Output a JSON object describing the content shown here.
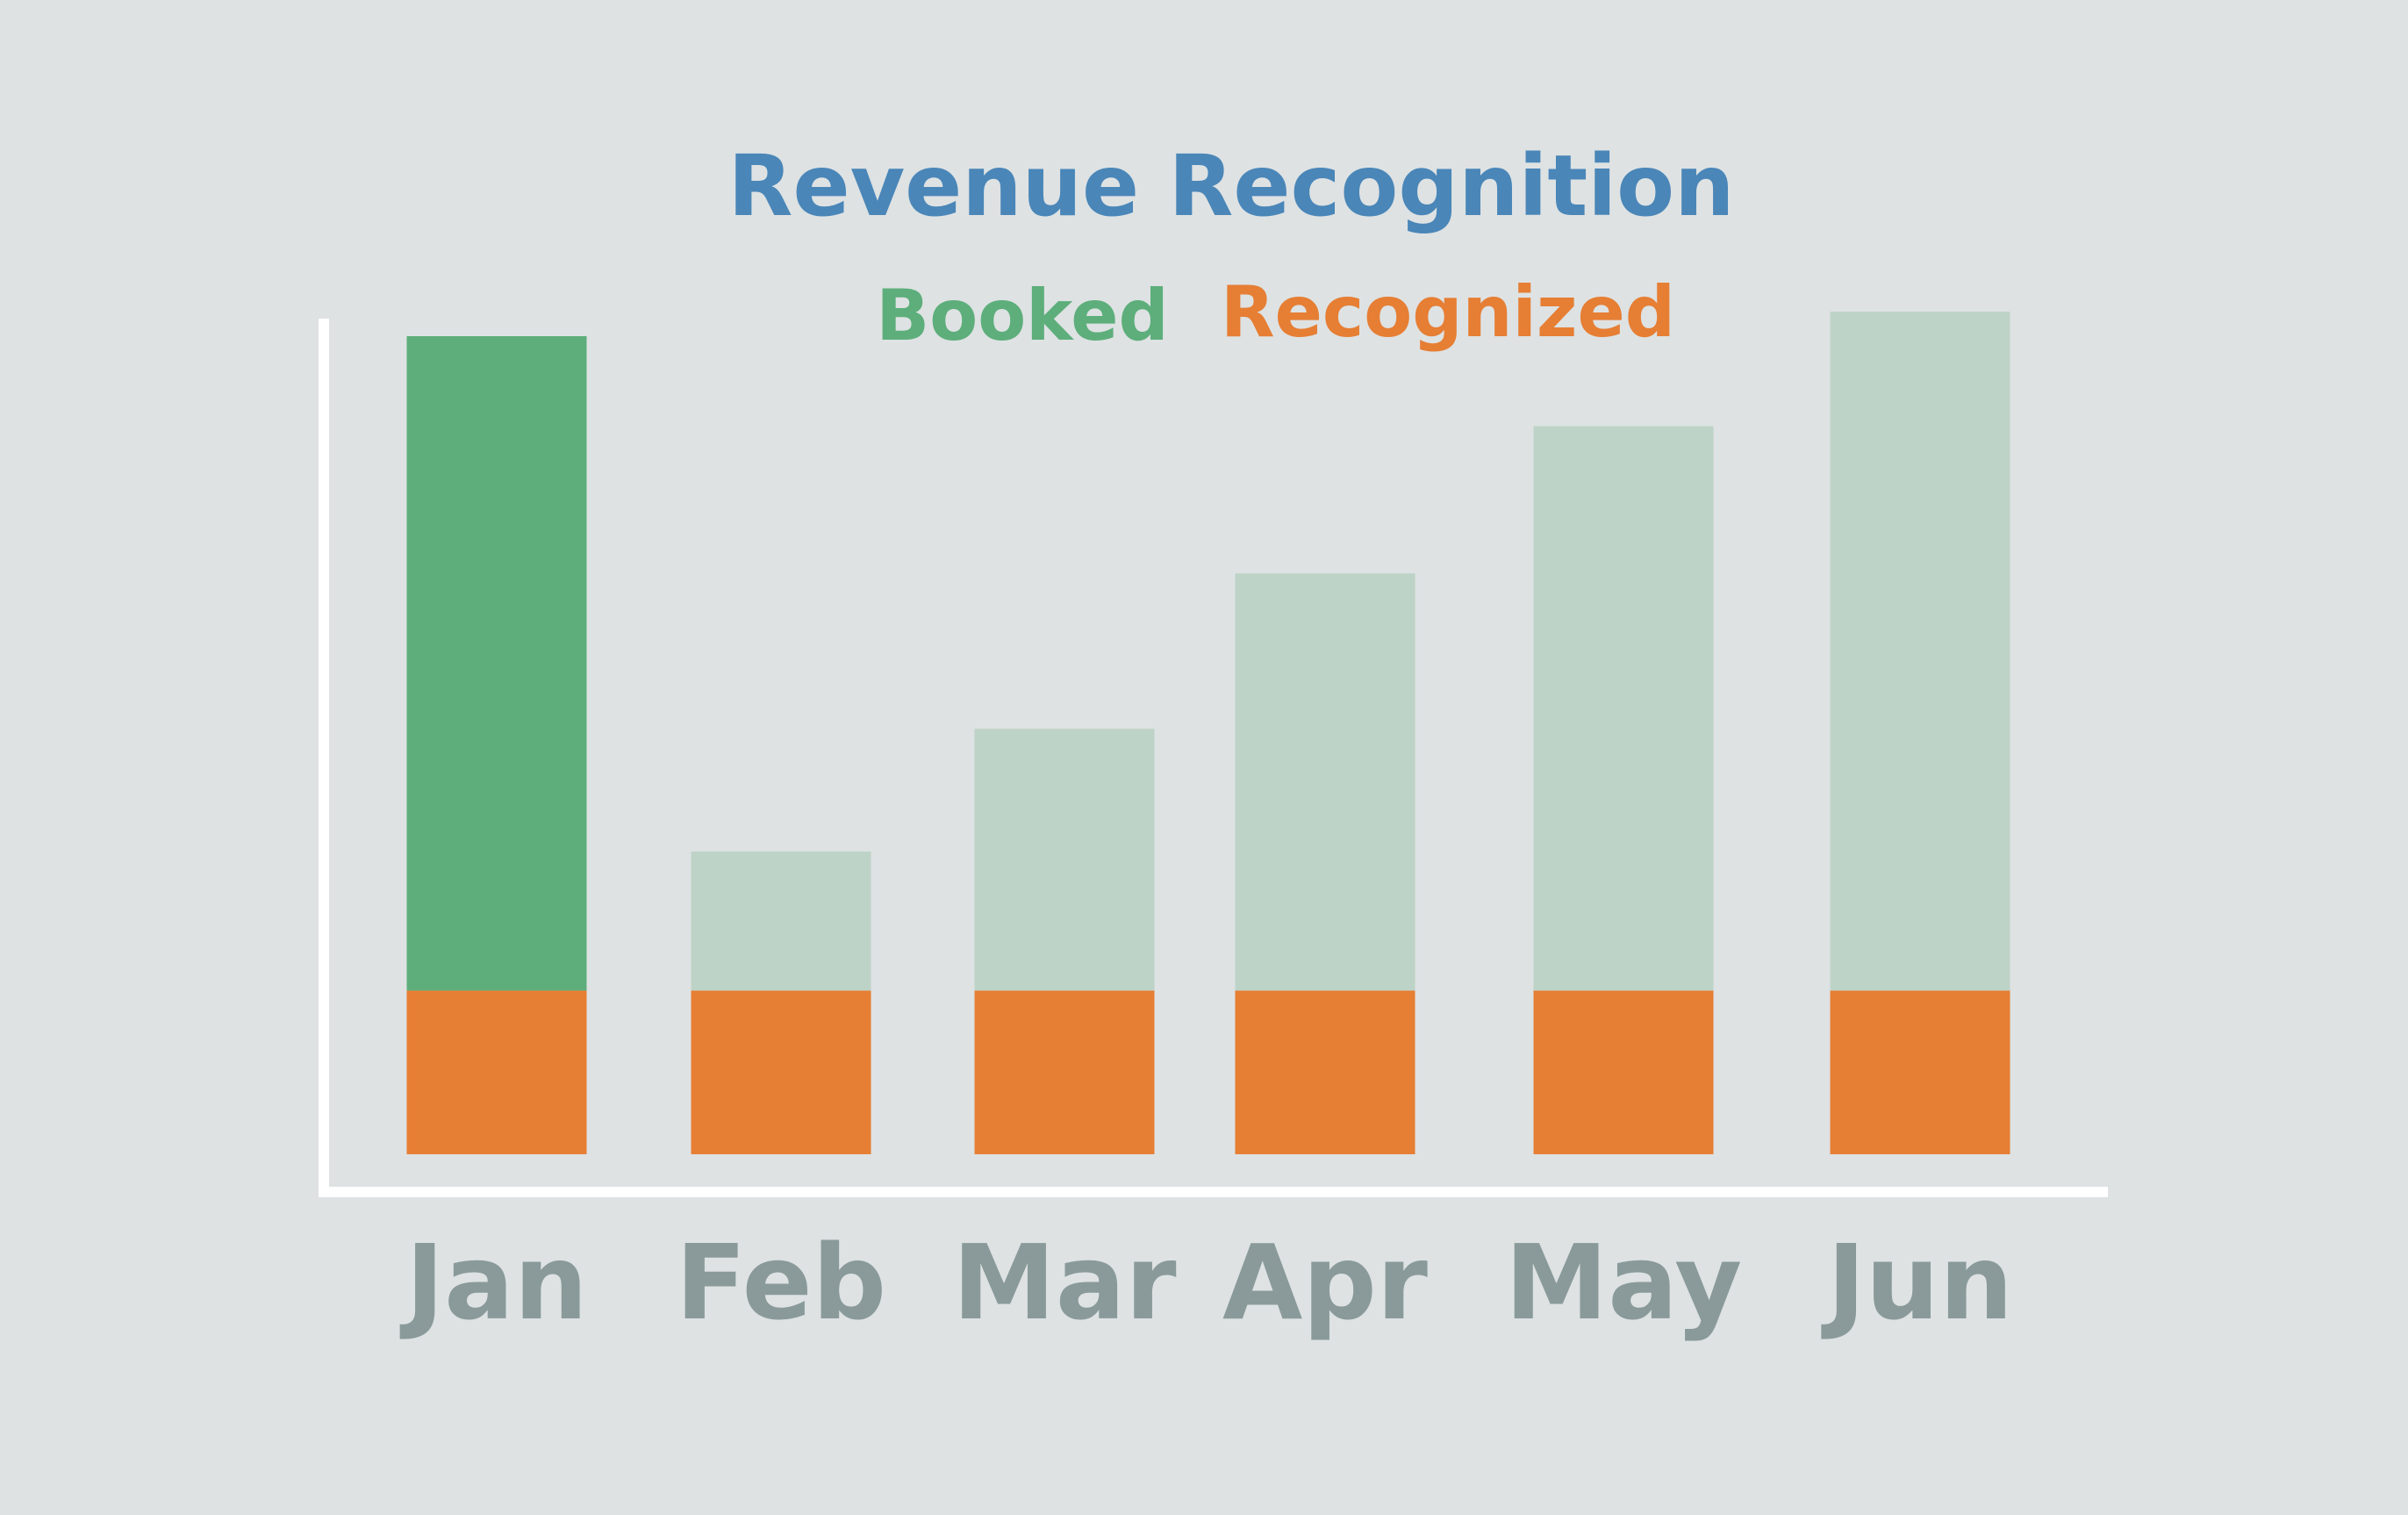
{
  "chart_data": {
    "type": "bar",
    "title": "Revenue Recognition",
    "categories": [
      "Jan",
      "Feb",
      "Mar",
      "Apr",
      "May",
      "Jun"
    ],
    "series": [
      {
        "name": "Booked",
        "values": [
          100,
          37,
          52,
          71,
          89,
          103
        ]
      },
      {
        "name": "Recognized",
        "values": [
          20,
          20,
          20,
          20,
          20,
          20
        ]
      }
    ],
    "highlight_category": "Jan",
    "ylim": [
      0,
      108
    ],
    "grid": false,
    "legend_position": "top-center"
  },
  "colors": {
    "background": "#dee2e3",
    "title": "#4a86b8",
    "booked": "#5dae7b",
    "booked_muted": "#bdd3c7",
    "recognized": "#e67e34",
    "axis": "#ffffff",
    "tick_label": "#8a9a9a"
  }
}
